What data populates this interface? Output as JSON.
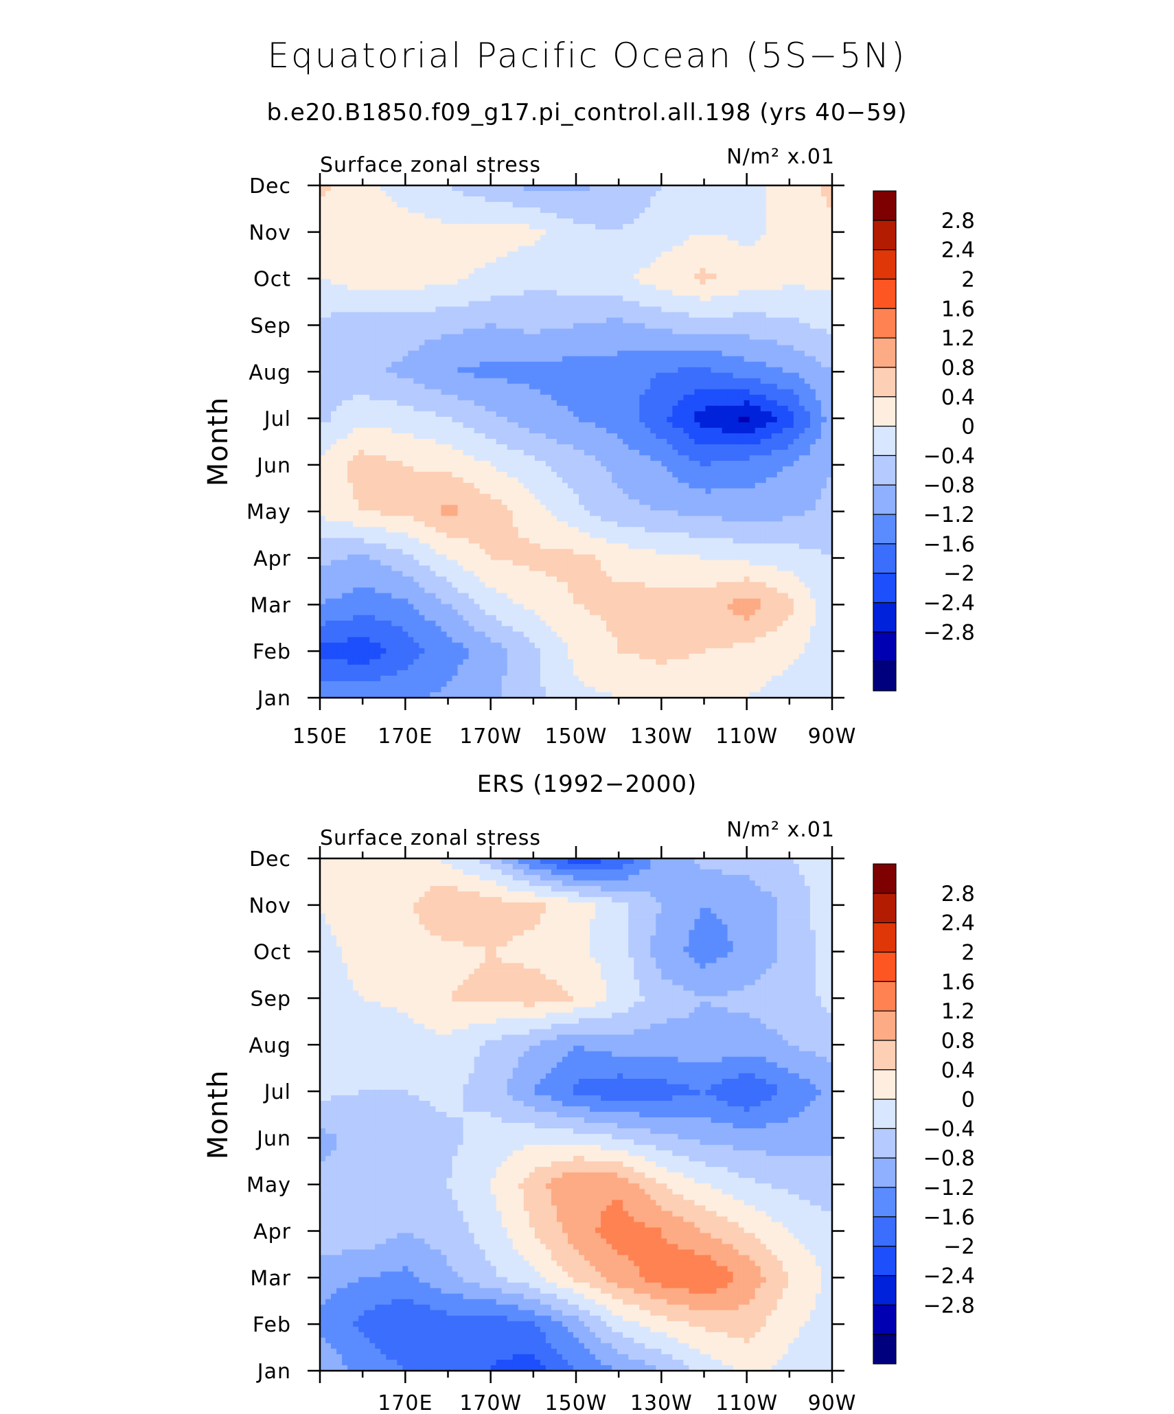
{
  "title": "Equatorial Pacific Ocean (5S−5N)",
  "subtitle": "b.e20.B1850.f09_g17.pi_control.all.198 (yrs 40−59)",
  "colors": {
    "levels": [
      "#00007f",
      "#0000b2",
      "#0022db",
      "#1d4ffc",
      "#3b6efd",
      "#5b8cff",
      "#8eb0fe",
      "#b5cafe",
      "#d8e7fe",
      "#fdeee0",
      "#fdcfb4",
      "#fdab85",
      "#fe8252",
      "#fe5622",
      "#e03708",
      "#b31c00",
      "#7f0000"
    ],
    "frame": "#000000"
  },
  "chart_data": [
    {
      "type": "heatmap",
      "panel_title": "",
      "left_label": "Surface zonal stress",
      "right_label": "N/m² x.01",
      "ylabel": "Month",
      "y_ticks": [
        "Jan",
        "Feb",
        "Mar",
        "Apr",
        "May",
        "Jun",
        "Jul",
        "Aug",
        "Sep",
        "Oct",
        "Nov",
        "Dec"
      ],
      "x_ticks": [
        "150E",
        "170E",
        "170W",
        "150W",
        "130W",
        "110W",
        "90W"
      ],
      "x_range": [
        150,
        270
      ],
      "colorbar_ticks": [
        "2.8",
        "2.4",
        "2",
        "1.6",
        "1.2",
        "0.8",
        "0.4",
        "0",
        "−0.4",
        "−0.8",
        "−1.2",
        "−1.6",
        "−2",
        "−2.4",
        "−2.8"
      ],
      "levels": [
        -3.2,
        -2.8,
        -2.4,
        -2.0,
        -1.6,
        -1.2,
        -0.8,
        -0.4,
        0,
        0.4,
        0.8,
        1.2,
        1.6,
        2.0,
        2.4,
        2.8,
        3.2
      ],
      "lon": [
        150,
        160,
        170,
        180,
        190,
        200,
        210,
        220,
        230,
        240,
        250,
        260,
        270
      ],
      "values": [
        [
          -0.9,
          -0.8,
          -0.9,
          -0.7,
          -0.5,
          -0.1,
          0.3,
          0.4,
          0.5,
          0.5,
          0.4,
          0.2,
          0.1
        ],
        [
          -1.7,
          -1.9,
          -1.4,
          -1.0,
          -0.6,
          -0.1,
          0.5,
          0.8,
          0.9,
          0.8,
          0.7,
          0.5,
          0.2
        ],
        [
          -0.8,
          -1.0,
          -0.9,
          -0.4,
          0.2,
          0.5,
          0.8,
          0.9,
          1.0,
          1.0,
          1.4,
          0.9,
          0.1
        ],
        [
          -0.3,
          -0.5,
          -0.1,
          0.4,
          0.8,
          0.9,
          0.9,
          0.7,
          0.5,
          0.4,
          0.3,
          0.2,
          0.0
        ],
        [
          0.5,
          0.8,
          0.9,
          1.3,
          1.0,
          0.6,
          0.1,
          -0.3,
          -0.4,
          -0.5,
          -0.6,
          -0.5,
          -0.3
        ],
        [
          0.5,
          1.0,
          0.8,
          0.7,
          0.4,
          0.1,
          -0.2,
          -0.5,
          -0.8,
          -1.2,
          -1.0,
          -0.8,
          -0.4
        ],
        [
          -0.1,
          0.3,
          0.2,
          0.0,
          -0.3,
          -0.6,
          -0.8,
          -1.0,
          -1.5,
          -2.2,
          -2.5,
          -1.8,
          -0.6
        ],
        [
          -0.2,
          -0.3,
          -0.5,
          -0.8,
          -0.9,
          -0.9,
          -1.0,
          -1.0,
          -1.2,
          -1.3,
          -1.0,
          -0.8,
          -0.4
        ],
        [
          -0.1,
          -0.2,
          -0.2,
          -0.3,
          -0.4,
          -0.3,
          -0.4,
          -0.5,
          -0.3,
          -0.2,
          -0.2,
          -0.1,
          0.1
        ],
        [
          0.4,
          0.6,
          0.6,
          0.5,
          0.3,
          0.1,
          0.2,
          0.3,
          0.6,
          0.9,
          0.6,
          0.5,
          0.5
        ],
        [
          0.6,
          0.7,
          0.6,
          0.5,
          0.6,
          0.5,
          0.1,
          0.0,
          0.2,
          0.4,
          0.3,
          0.5,
          0.7
        ],
        [
          0.9,
          0.5,
          0.2,
          0.0,
          -0.3,
          -0.5,
          -0.5,
          -0.3,
          0.0,
          0.1,
          0.2,
          0.6,
          0.9
        ]
      ]
    },
    {
      "type": "heatmap",
      "panel_title": "ERS (1992−2000)",
      "left_label": "Surface zonal stress",
      "right_label": "N/m² x.01",
      "ylabel": "Month",
      "y_ticks": [
        "Jan",
        "Feb",
        "Mar",
        "Apr",
        "May",
        "Jun",
        "Jul",
        "Aug",
        "Sep",
        "Oct",
        "Nov",
        "Dec"
      ],
      "x_ticks": [
        "170E",
        "170W",
        "150W",
        "130W",
        "110W",
        "90W"
      ],
      "x_range": [
        150,
        270
      ],
      "colorbar_ticks": [
        "2.8",
        "2.4",
        "2",
        "1.6",
        "1.2",
        "0.8",
        "0.4",
        "0",
        "−0.4",
        "−0.8",
        "−1.2",
        "−1.6",
        "−2",
        "−2.4",
        "−2.8"
      ],
      "levels": [
        -3.2,
        -2.8,
        -2.4,
        -2.0,
        -1.6,
        -1.2,
        -0.8,
        -0.4,
        0,
        0.4,
        0.8,
        1.2,
        1.6,
        2.0,
        2.4,
        2.8,
        3.2
      ],
      "lon": [
        150,
        160,
        170,
        180,
        190,
        200,
        210,
        220,
        230,
        240,
        250,
        260,
        270
      ],
      "values": [
        [
          -0.5,
          -0.9,
          -1.2,
          -1.5,
          -1.6,
          -1.8,
          -1.2,
          -0.8,
          -0.4,
          0.1,
          0.5,
          0.3,
          0.1
        ],
        [
          -0.9,
          -1.3,
          -1.6,
          -1.4,
          -1.5,
          -1.2,
          -0.6,
          0.2,
          0.6,
          0.9,
          1.0,
          0.5,
          0.2
        ],
        [
          -0.6,
          -0.8,
          -0.9,
          -0.5,
          -0.1,
          0.3,
          0.9,
          1.4,
          1.8,
          2.0,
          1.5,
          0.8,
          0.3
        ],
        [
          -0.2,
          -0.1,
          -0.4,
          -0.2,
          0.2,
          0.8,
          1.4,
          1.8,
          1.6,
          1.2,
          0.8,
          0.4,
          0.1
        ],
        [
          -0.3,
          -0.3,
          -0.2,
          0.0,
          0.4,
          1.0,
          1.6,
          1.5,
          0.8,
          0.4,
          0.1,
          -0.1,
          -0.2
        ],
        [
          -0.5,
          -0.3,
          -0.2,
          -0.1,
          0.2,
          0.3,
          0.2,
          0.0,
          -0.3,
          -0.5,
          -0.6,
          -0.6,
          -0.5
        ],
        [
          0.1,
          0.0,
          0.0,
          0.1,
          -0.2,
          -0.8,
          -1.3,
          -1.5,
          -1.4,
          -1.2,
          -1.6,
          -1.1,
          -0.7
        ],
        [
          0.2,
          0.1,
          0.2,
          0.3,
          -0.1,
          -0.4,
          -0.8,
          -0.6,
          -0.6,
          -0.5,
          -0.6,
          -0.4,
          -0.2
        ],
        [
          0.3,
          0.4,
          0.5,
          0.8,
          0.9,
          1.0,
          0.8,
          0.3,
          -0.2,
          -0.4,
          -0.3,
          -0.2,
          0.1
        ],
        [
          0.3,
          0.5,
          0.6,
          0.7,
          0.8,
          0.7,
          0.5,
          0.2,
          -0.6,
          -1.0,
          -0.7,
          -0.3,
          0.2
        ],
        [
          0.4,
          0.6,
          0.7,
          1.2,
          1.0,
          0.9,
          0.6,
          0.1,
          -0.4,
          -0.8,
          -0.7,
          -0.3,
          0.3
        ],
        [
          0.6,
          0.7,
          0.6,
          0.3,
          -0.2,
          -1.2,
          -1.9,
          -1.6,
          -0.6,
          -0.3,
          -0.2,
          0.0,
          0.2
        ]
      ]
    }
  ]
}
